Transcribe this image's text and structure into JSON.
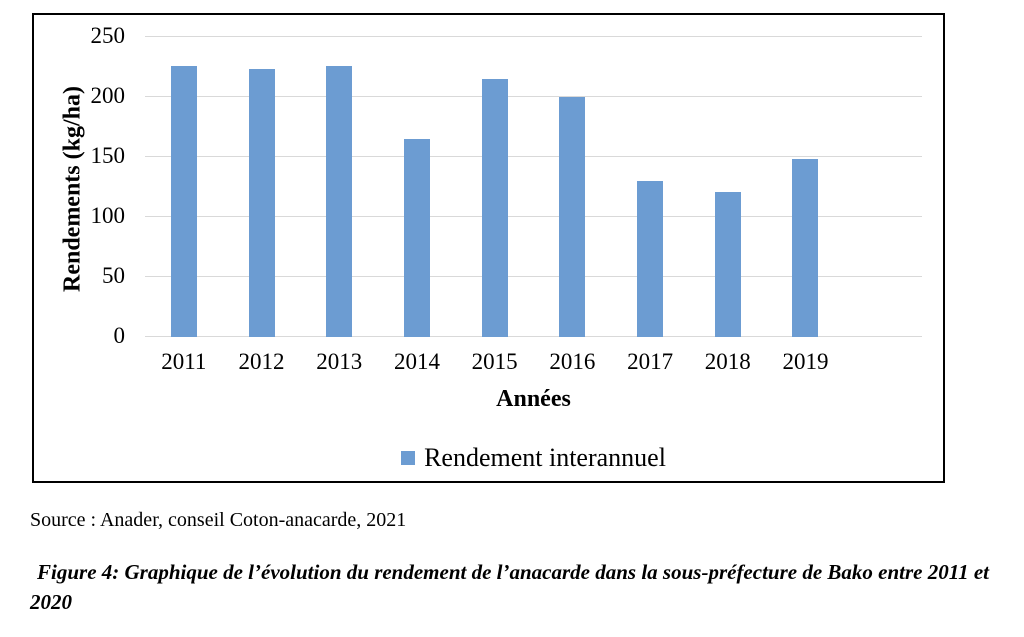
{
  "chart_data": {
    "type": "bar",
    "title": "",
    "categories": [
      "2011",
      "2012",
      "2013",
      "2014",
      "2015",
      "2016",
      "2017",
      "2018",
      "2019",
      ""
    ],
    "values": [
      226,
      223,
      226,
      165,
      215,
      200,
      130,
      121,
      148,
      null
    ],
    "series": [
      {
        "name": "Rendement interannuel"
      }
    ],
    "xlabel": "Années",
    "ylabel": "Rendements (kg/ha)",
    "ylim": [
      0,
      250
    ],
    "yticks": [
      0,
      50,
      100,
      150,
      200,
      250
    ],
    "grid": true,
    "legend_position": "bottom-center",
    "bar_color": "#6c9cd2",
    "gridline_color": "#d9d9d9",
    "frame_border_color": "#000000"
  },
  "legend": {
    "label": "Rendement interannuel"
  },
  "annotations": {
    "source": "Source : Anader, conseil Coton-anacarde, 2021",
    "caption_line1": "Figure 4: Graphique de l’évolution du rendement de l’anacarde dans la sous-préfecture de Bako entre 2011 et",
    "caption_line2": "2020"
  }
}
